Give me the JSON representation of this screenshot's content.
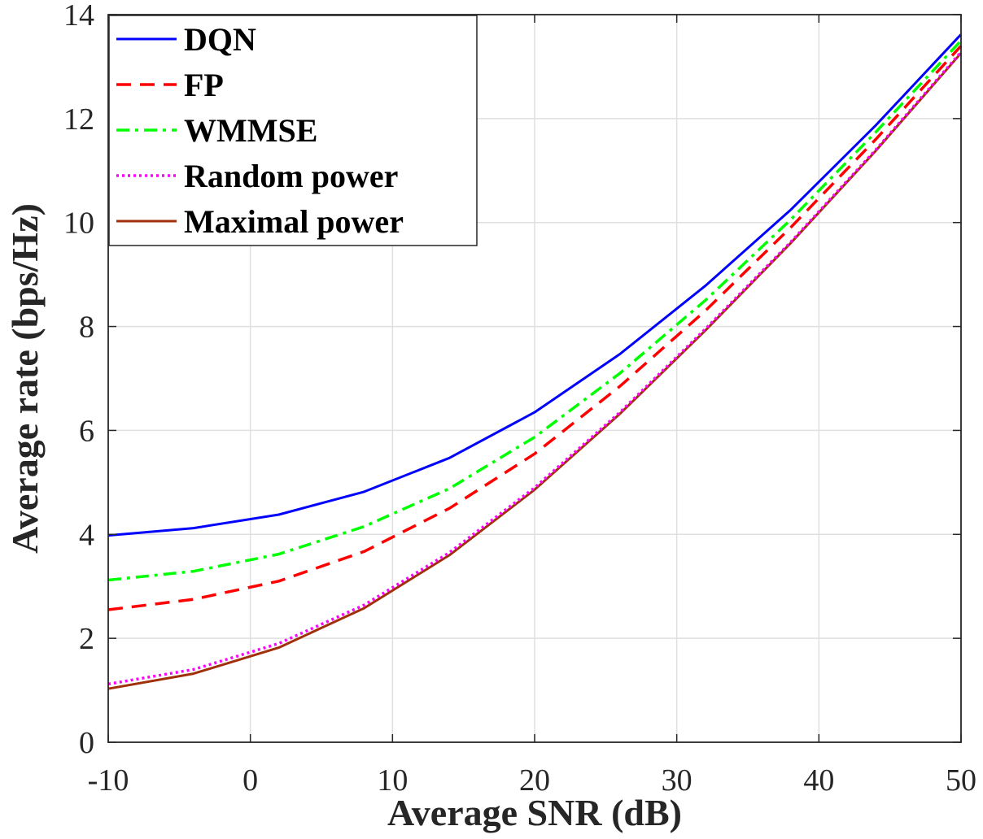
{
  "chart_data": {
    "type": "line",
    "title": "",
    "xlabel": "Average SNR (dB)",
    "ylabel": "Average rate (bps/Hz)",
    "xlim": [
      -10,
      50
    ],
    "ylim": [
      0,
      14
    ],
    "xticks": [
      -10,
      0,
      10,
      20,
      30,
      40,
      50
    ],
    "yticks": [
      0,
      2,
      4,
      6,
      8,
      10,
      12,
      14
    ],
    "xtick_labels": [
      "-10",
      "0",
      "10",
      "20",
      "30",
      "40",
      "50"
    ],
    "ytick_labels": [
      "0",
      "2",
      "4",
      "6",
      "8",
      "10",
      "12",
      "14"
    ],
    "grid": true,
    "legend_position": "top-left",
    "x": [
      -10,
      -4,
      2,
      8,
      14,
      20,
      26,
      32,
      38,
      44,
      50
    ],
    "series": [
      {
        "name": "DQN",
        "color": "#0000ff",
        "style": "solid",
        "values": [
          3.98,
          4.12,
          4.38,
          4.82,
          5.47,
          6.35,
          7.47,
          8.78,
          10.24,
          11.87,
          13.62
        ]
      },
      {
        "name": "FP",
        "color": "#ff0000",
        "style": "dashed",
        "values": [
          2.55,
          2.75,
          3.1,
          3.67,
          4.5,
          5.55,
          6.85,
          8.3,
          9.9,
          11.6,
          13.4
        ]
      },
      {
        "name": "WMMSE",
        "color": "#00ff00",
        "style": "dashdot",
        "values": [
          3.12,
          3.29,
          3.62,
          4.15,
          4.88,
          5.87,
          7.1,
          8.5,
          10.05,
          11.74,
          13.5
        ]
      },
      {
        "name": "Random power",
        "color": "#ff00ff",
        "style": "dotted",
        "values": [
          1.12,
          1.4,
          1.9,
          2.64,
          3.65,
          4.9,
          6.35,
          7.95,
          9.62,
          11.4,
          13.28
        ]
      },
      {
        "name": "Maximal power",
        "color": "#a0300a",
        "style": "solid",
        "values": [
          1.03,
          1.32,
          1.82,
          2.58,
          3.6,
          4.86,
          6.32,
          7.92,
          9.6,
          11.38,
          13.26
        ]
      }
    ]
  }
}
